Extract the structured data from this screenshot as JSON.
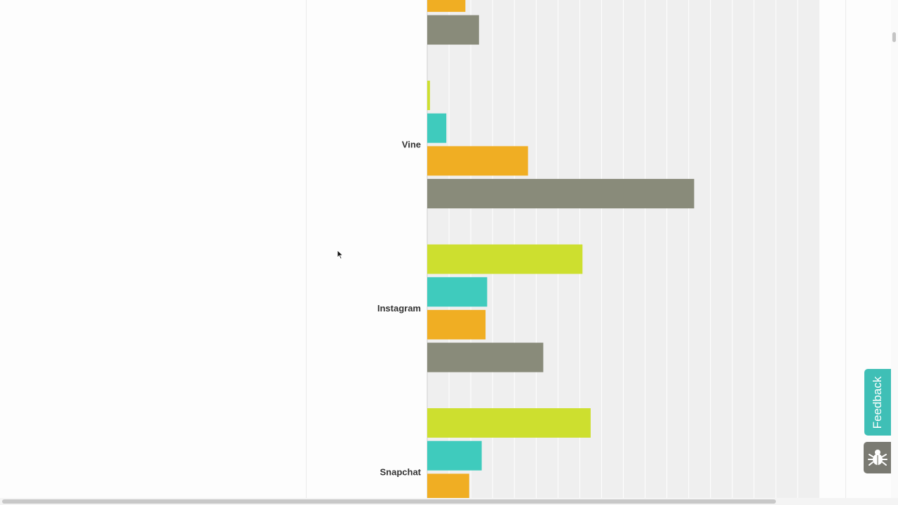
{
  "chart_data": {
    "type": "bar",
    "orientation": "horizontal",
    "categories": [
      "",
      "Vine",
      "Instagram",
      "Snapchat"
    ],
    "series": [
      {
        "color": "#cddf2f",
        "values": [
          null,
          0.5,
          28.5,
          30
        ]
      },
      {
        "color": "#3fcbbd",
        "values": [
          null,
          3.5,
          11,
          10
        ]
      },
      {
        "color": "#f0ae23",
        "values": [
          7,
          18.5,
          10.7,
          7.7
        ]
      },
      {
        "color": "#898b7a",
        "values": [
          9.5,
          49,
          21.3,
          null
        ]
      }
    ],
    "xlim": [
      0,
      72
    ],
    "grid": true
  },
  "feedback": {
    "label": "Feedback"
  },
  "bug_report": {
    "icon": "bug-icon"
  }
}
